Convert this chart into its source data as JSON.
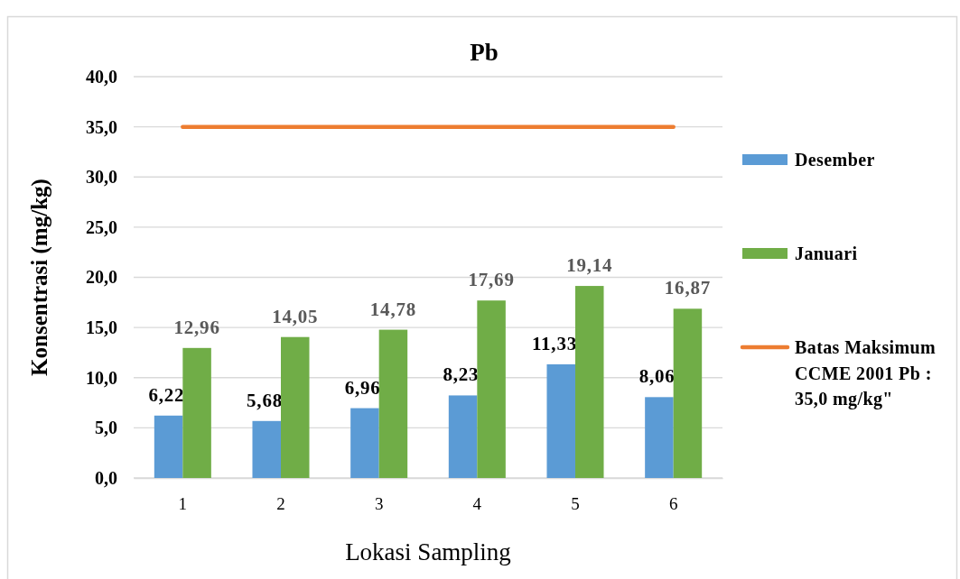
{
  "chart_data": {
    "type": "bar",
    "title": "Pb",
    "xlabel": "Lokasi Sampling",
    "ylabel": "Konsentrasi (mg/kg)",
    "categories": [
      "1",
      "2",
      "3",
      "4",
      "5",
      "6"
    ],
    "series": [
      {
        "name": "Desember",
        "color": "#5b9bd5",
        "values": [
          6.22,
          5.68,
          6.96,
          8.23,
          11.33,
          8.06
        ],
        "value_labels": [
          "6,22",
          "5,68",
          "6,96",
          "8,23",
          "11,33",
          "8,06"
        ]
      },
      {
        "name": "Januari",
        "color": "#70ad47",
        "values": [
          12.96,
          14.05,
          14.78,
          17.69,
          19.14,
          16.87
        ],
        "value_labels": [
          "12,96",
          "14,05",
          "14,78",
          "17,69",
          "19,14",
          "16,87"
        ]
      },
      {
        "name": "Batas Maksimum CCME 2001 Pb : 35,0 mg/kg\"",
        "type": "line",
        "color": "#ed7d31",
        "values": [
          35,
          35,
          35,
          35,
          35,
          35
        ]
      }
    ],
    "ylim": [
      0,
      40
    ],
    "yticks": [
      {
        "value": 0,
        "label": "0,0"
      },
      {
        "value": 5,
        "label": "5,0"
      },
      {
        "value": 10,
        "label": "10,0"
      },
      {
        "value": 15,
        "label": "15,0"
      },
      {
        "value": 20,
        "label": "20,0"
      },
      {
        "value": 25,
        "label": "25,0"
      },
      {
        "value": 30,
        "label": "30,0"
      },
      {
        "value": 35,
        "label": "35,0"
      },
      {
        "value": 40,
        "label": "40,0"
      }
    ],
    "grid": "y",
    "legend": "right"
  }
}
